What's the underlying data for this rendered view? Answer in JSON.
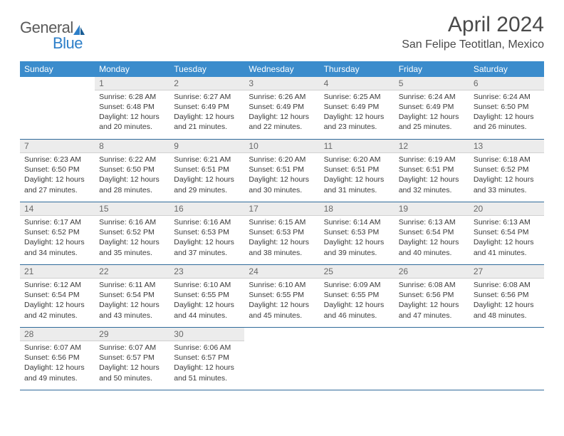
{
  "logo": {
    "part1": "General",
    "part2": "Blue"
  },
  "header": {
    "month_title": "April 2024",
    "location": "San Felipe Teotitlan, Mexico"
  },
  "colors": {
    "header_bg": "#3b8ccc",
    "header_text": "#ffffff",
    "daynum_bg": "#ececec",
    "rule": "#2f6a9a",
    "logo_gray": "#5a5a5a",
    "logo_blue": "#2d7fc9"
  },
  "dayNames": [
    "Sunday",
    "Monday",
    "Tuesday",
    "Wednesday",
    "Thursday",
    "Friday",
    "Saturday"
  ],
  "weeks": [
    [
      {
        "n": "",
        "lines": [
          "",
          "",
          "",
          ""
        ],
        "empty": true
      },
      {
        "n": "1",
        "lines": [
          "Sunrise: 6:28 AM",
          "Sunset: 6:48 PM",
          "Daylight: 12 hours",
          "and 20 minutes."
        ]
      },
      {
        "n": "2",
        "lines": [
          "Sunrise: 6:27 AM",
          "Sunset: 6:49 PM",
          "Daylight: 12 hours",
          "and 21 minutes."
        ]
      },
      {
        "n": "3",
        "lines": [
          "Sunrise: 6:26 AM",
          "Sunset: 6:49 PM",
          "Daylight: 12 hours",
          "and 22 minutes."
        ]
      },
      {
        "n": "4",
        "lines": [
          "Sunrise: 6:25 AM",
          "Sunset: 6:49 PM",
          "Daylight: 12 hours",
          "and 23 minutes."
        ]
      },
      {
        "n": "5",
        "lines": [
          "Sunrise: 6:24 AM",
          "Sunset: 6:49 PM",
          "Daylight: 12 hours",
          "and 25 minutes."
        ]
      },
      {
        "n": "6",
        "lines": [
          "Sunrise: 6:24 AM",
          "Sunset: 6:50 PM",
          "Daylight: 12 hours",
          "and 26 minutes."
        ]
      }
    ],
    [
      {
        "n": "7",
        "lines": [
          "Sunrise: 6:23 AM",
          "Sunset: 6:50 PM",
          "Daylight: 12 hours",
          "and 27 minutes."
        ]
      },
      {
        "n": "8",
        "lines": [
          "Sunrise: 6:22 AM",
          "Sunset: 6:50 PM",
          "Daylight: 12 hours",
          "and 28 minutes."
        ]
      },
      {
        "n": "9",
        "lines": [
          "Sunrise: 6:21 AM",
          "Sunset: 6:51 PM",
          "Daylight: 12 hours",
          "and 29 minutes."
        ]
      },
      {
        "n": "10",
        "lines": [
          "Sunrise: 6:20 AM",
          "Sunset: 6:51 PM",
          "Daylight: 12 hours",
          "and 30 minutes."
        ]
      },
      {
        "n": "11",
        "lines": [
          "Sunrise: 6:20 AM",
          "Sunset: 6:51 PM",
          "Daylight: 12 hours",
          "and 31 minutes."
        ]
      },
      {
        "n": "12",
        "lines": [
          "Sunrise: 6:19 AM",
          "Sunset: 6:51 PM",
          "Daylight: 12 hours",
          "and 32 minutes."
        ]
      },
      {
        "n": "13",
        "lines": [
          "Sunrise: 6:18 AM",
          "Sunset: 6:52 PM",
          "Daylight: 12 hours",
          "and 33 minutes."
        ]
      }
    ],
    [
      {
        "n": "14",
        "lines": [
          "Sunrise: 6:17 AM",
          "Sunset: 6:52 PM",
          "Daylight: 12 hours",
          "and 34 minutes."
        ]
      },
      {
        "n": "15",
        "lines": [
          "Sunrise: 6:16 AM",
          "Sunset: 6:52 PM",
          "Daylight: 12 hours",
          "and 35 minutes."
        ]
      },
      {
        "n": "16",
        "lines": [
          "Sunrise: 6:16 AM",
          "Sunset: 6:53 PM",
          "Daylight: 12 hours",
          "and 37 minutes."
        ]
      },
      {
        "n": "17",
        "lines": [
          "Sunrise: 6:15 AM",
          "Sunset: 6:53 PM",
          "Daylight: 12 hours",
          "and 38 minutes."
        ]
      },
      {
        "n": "18",
        "lines": [
          "Sunrise: 6:14 AM",
          "Sunset: 6:53 PM",
          "Daylight: 12 hours",
          "and 39 minutes."
        ]
      },
      {
        "n": "19",
        "lines": [
          "Sunrise: 6:13 AM",
          "Sunset: 6:54 PM",
          "Daylight: 12 hours",
          "and 40 minutes."
        ]
      },
      {
        "n": "20",
        "lines": [
          "Sunrise: 6:13 AM",
          "Sunset: 6:54 PM",
          "Daylight: 12 hours",
          "and 41 minutes."
        ]
      }
    ],
    [
      {
        "n": "21",
        "lines": [
          "Sunrise: 6:12 AM",
          "Sunset: 6:54 PM",
          "Daylight: 12 hours",
          "and 42 minutes."
        ]
      },
      {
        "n": "22",
        "lines": [
          "Sunrise: 6:11 AM",
          "Sunset: 6:54 PM",
          "Daylight: 12 hours",
          "and 43 minutes."
        ]
      },
      {
        "n": "23",
        "lines": [
          "Sunrise: 6:10 AM",
          "Sunset: 6:55 PM",
          "Daylight: 12 hours",
          "and 44 minutes."
        ]
      },
      {
        "n": "24",
        "lines": [
          "Sunrise: 6:10 AM",
          "Sunset: 6:55 PM",
          "Daylight: 12 hours",
          "and 45 minutes."
        ]
      },
      {
        "n": "25",
        "lines": [
          "Sunrise: 6:09 AM",
          "Sunset: 6:55 PM",
          "Daylight: 12 hours",
          "and 46 minutes."
        ]
      },
      {
        "n": "26",
        "lines": [
          "Sunrise: 6:08 AM",
          "Sunset: 6:56 PM",
          "Daylight: 12 hours",
          "and 47 minutes."
        ]
      },
      {
        "n": "27",
        "lines": [
          "Sunrise: 6:08 AM",
          "Sunset: 6:56 PM",
          "Daylight: 12 hours",
          "and 48 minutes."
        ]
      }
    ],
    [
      {
        "n": "28",
        "lines": [
          "Sunrise: 6:07 AM",
          "Sunset: 6:56 PM",
          "Daylight: 12 hours",
          "and 49 minutes."
        ]
      },
      {
        "n": "29",
        "lines": [
          "Sunrise: 6:07 AM",
          "Sunset: 6:57 PM",
          "Daylight: 12 hours",
          "and 50 minutes."
        ]
      },
      {
        "n": "30",
        "lines": [
          "Sunrise: 6:06 AM",
          "Sunset: 6:57 PM",
          "Daylight: 12 hours",
          "and 51 minutes."
        ]
      },
      {
        "n": "",
        "lines": [
          "",
          "",
          "",
          ""
        ],
        "empty": true
      },
      {
        "n": "",
        "lines": [
          "",
          "",
          "",
          ""
        ],
        "empty": true
      },
      {
        "n": "",
        "lines": [
          "",
          "",
          "",
          ""
        ],
        "empty": true
      },
      {
        "n": "",
        "lines": [
          "",
          "",
          "",
          ""
        ],
        "empty": true
      }
    ]
  ]
}
